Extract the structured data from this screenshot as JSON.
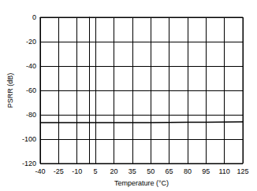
{
  "chart_data": {
    "type": "line",
    "x_label": "Temperature (°C)",
    "y_label": "PSRR (dB)",
    "x": [
      -40,
      -25,
      -10,
      5,
      20,
      35,
      50,
      65,
      80,
      95,
      110,
      125
    ],
    "series": [
      {
        "name": "PSRR",
        "color": "#000000",
        "values": [
          -86.5,
          -86.5,
          -86.5,
          -86.5,
          -86.4,
          -86.4,
          -86.4,
          -86.3,
          -86.2,
          -86.1,
          -85.9,
          -85.8
        ]
      }
    ],
    "xlim": [
      -40,
      125
    ],
    "xticks": [
      -40,
      -25,
      -10,
      5,
      20,
      35,
      50,
      65,
      80,
      95,
      110,
      125
    ],
    "ylim": [
      -120,
      0
    ],
    "yticks": [
      -120,
      -100,
      -80,
      -60,
      -40,
      -20,
      0
    ],
    "grid": true
  }
}
